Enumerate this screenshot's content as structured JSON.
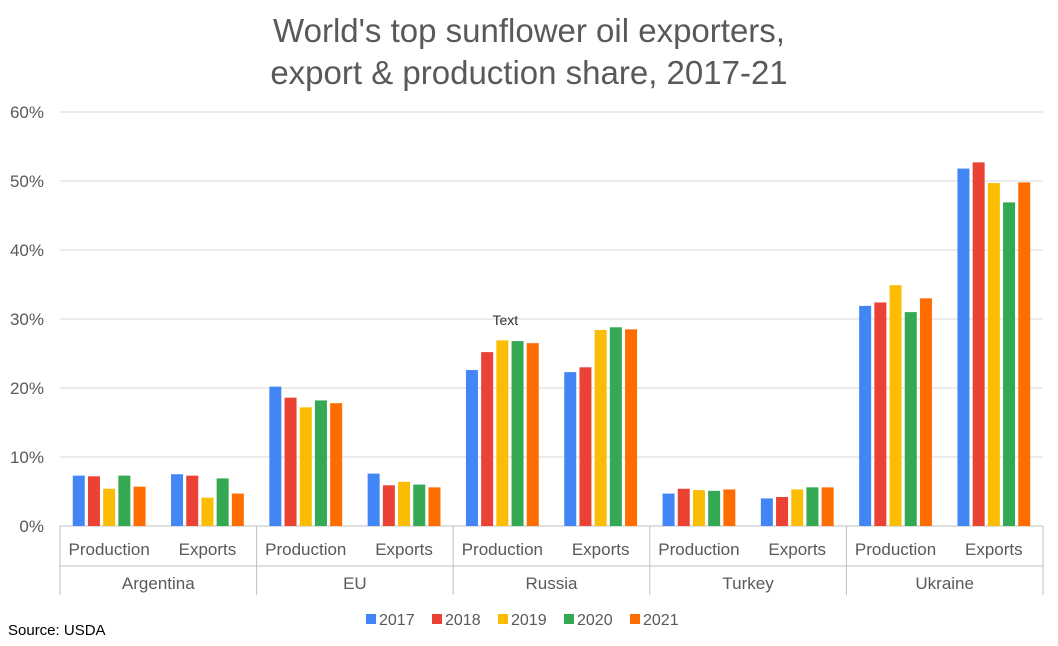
{
  "chart_data": {
    "type": "bar",
    "title": "World's top sunflower oil exporters,",
    "subtitle": "export & production share, 2017-21",
    "ylabel": "",
    "xlabel": "",
    "ylim": [
      0,
      60
    ],
    "y_ticks": [
      "0%",
      "10%",
      "20%",
      "30%",
      "40%",
      "50%",
      "60%"
    ],
    "y_tick_values": [
      0,
      10,
      20,
      30,
      40,
      50,
      60
    ],
    "groups": [
      {
        "country": "Argentina",
        "categories": [
          "Production",
          "Exports"
        ]
      },
      {
        "country": "EU",
        "categories": [
          "Production",
          "Exports"
        ]
      },
      {
        "country": "Russia",
        "categories": [
          "Production",
          "Exports"
        ]
      },
      {
        "country": "Turkey",
        "categories": [
          "Production",
          "Exports"
        ]
      },
      {
        "country": "Ukraine",
        "categories": [
          "Production",
          "Exports"
        ]
      }
    ],
    "categories": [
      "Argentina Production",
      "Argentina Exports",
      "EU Production",
      "EU Exports",
      "Russia Production",
      "Russia Exports",
      "Turkey Production",
      "Turkey Exports",
      "Ukraine Production",
      "Ukraine Exports"
    ],
    "series": [
      {
        "name": "2017",
        "color": "#4285F4",
        "values": [
          7.3,
          7.5,
          20.2,
          7.6,
          22.6,
          22.3,
          4.7,
          4.0,
          31.9,
          51.8
        ]
      },
      {
        "name": "2018",
        "color": "#EA4335",
        "values": [
          7.2,
          7.3,
          18.6,
          5.9,
          25.2,
          23.0,
          5.4,
          4.2,
          32.4,
          52.7
        ]
      },
      {
        "name": "2019",
        "color": "#FBBC04",
        "values": [
          5.4,
          4.1,
          17.2,
          6.4,
          26.9,
          28.4,
          5.2,
          5.3,
          34.9,
          49.7
        ]
      },
      {
        "name": "2020",
        "color": "#34A853",
        "values": [
          7.3,
          6.9,
          18.2,
          6.0,
          26.8,
          28.8,
          5.1,
          5.6,
          31.0,
          46.9
        ]
      },
      {
        "name": "2021",
        "color": "#FF6D01",
        "values": [
          5.7,
          4.7,
          17.8,
          5.6,
          26.5,
          28.5,
          5.3,
          5.6,
          33.0,
          49.8
        ]
      }
    ],
    "annotation": "Text",
    "legend_position": "bottom",
    "grid": true
  },
  "source": "Source: USDA"
}
